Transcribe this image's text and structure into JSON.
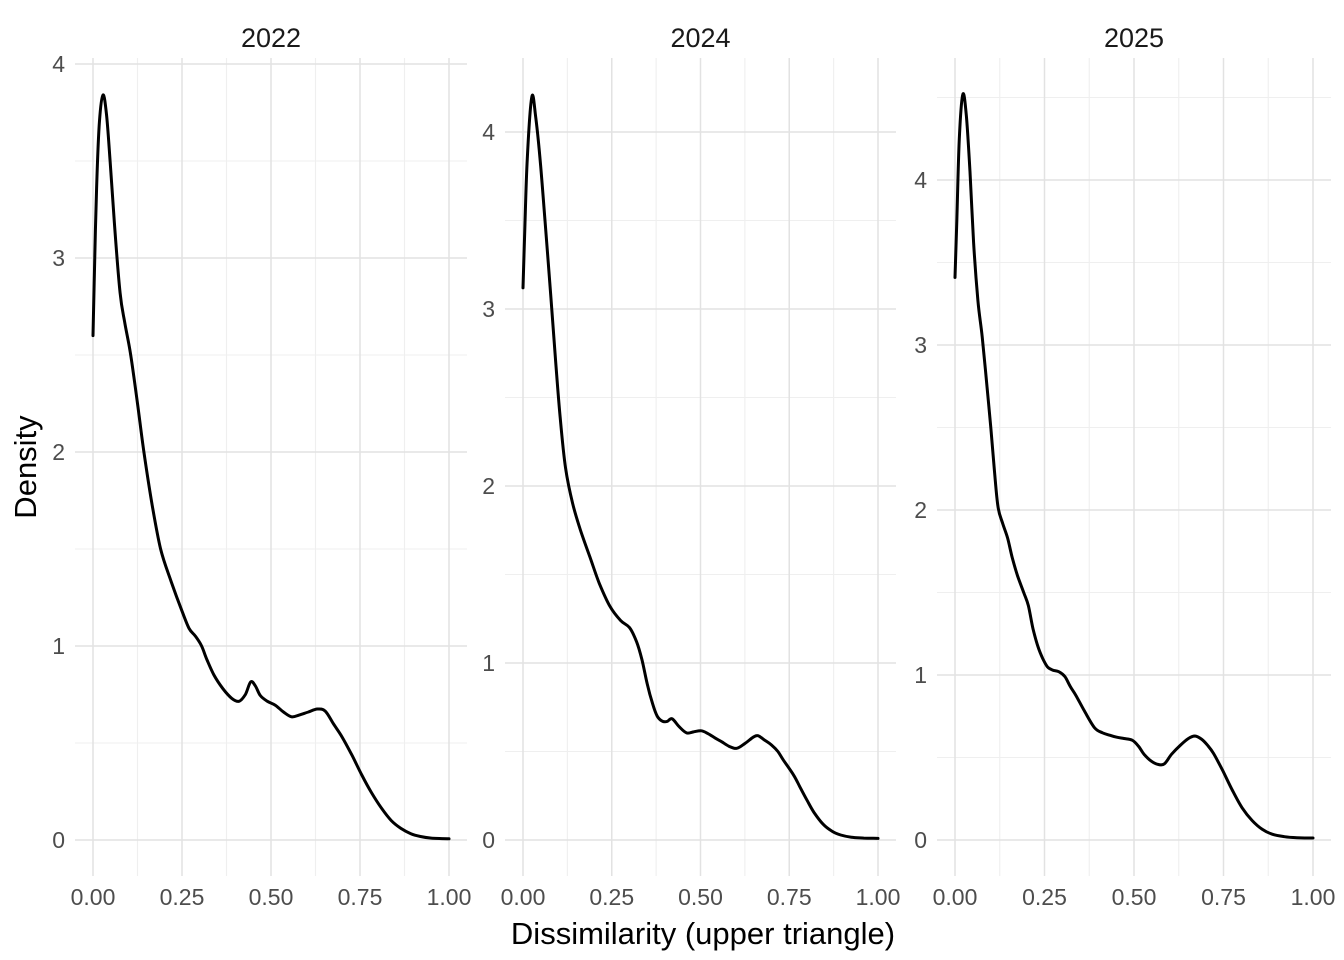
{
  "figure": {
    "title": "",
    "background_color": "#ffffff"
  },
  "chart_data": {
    "type": "line",
    "subtype": "kernel-density",
    "grid": "on",
    "legend": "none",
    "facet_layout": "3 columns, free y scales",
    "colors": {
      "line": "#000000",
      "grid_major": "#e2e2e2",
      "grid_minor": "#efefef",
      "tick_text": "#4d4d4d",
      "strip_text": "#1a1a1a",
      "axis_title_text": "#000000"
    },
    "x_axis": {
      "label": "Dissimilarity (upper triangle)",
      "ticks": [
        0,
        0.25,
        0.5,
        0.75,
        1.0
      ],
      "tick_labels": [
        "0.00",
        "0.25",
        "0.50",
        "0.75",
        "1.00"
      ],
      "minor_ticks": [
        0.125,
        0.375,
        0.625,
        0.875
      ],
      "range": [
        -0.05,
        1.05
      ]
    },
    "y_axis": {
      "label": "Density",
      "ticks": [
        0,
        1,
        2,
        3,
        4
      ],
      "tick_labels": [
        "0",
        "1",
        "2",
        "3",
        "4"
      ],
      "minor_step": 0.5
    },
    "facets": [
      {
        "title": "2022",
        "y_max": 3.84,
        "peak": {
          "x": 0.028,
          "density": 3.84
        },
        "start_density_at_0": 2.6,
        "points": [
          [
            0,
            2.6
          ],
          [
            0.004,
            2.92
          ],
          [
            0.01,
            3.36
          ],
          [
            0.018,
            3.7
          ],
          [
            0.028,
            3.84
          ],
          [
            0.038,
            3.74
          ],
          [
            0.048,
            3.5
          ],
          [
            0.06,
            3.18
          ],
          [
            0.076,
            2.82
          ],
          [
            0.09,
            2.66
          ],
          [
            0.106,
            2.5
          ],
          [
            0.125,
            2.25
          ],
          [
            0.143,
            2.0
          ],
          [
            0.165,
            1.74
          ],
          [
            0.19,
            1.5
          ],
          [
            0.22,
            1.33
          ],
          [
            0.25,
            1.18
          ],
          [
            0.27,
            1.09
          ],
          [
            0.288,
            1.05
          ],
          [
            0.305,
            1.0
          ],
          [
            0.32,
            0.93
          ],
          [
            0.34,
            0.85
          ],
          [
            0.365,
            0.78
          ],
          [
            0.39,
            0.73
          ],
          [
            0.41,
            0.715
          ],
          [
            0.428,
            0.75
          ],
          [
            0.443,
            0.815
          ],
          [
            0.456,
            0.795
          ],
          [
            0.47,
            0.745
          ],
          [
            0.49,
            0.715
          ],
          [
            0.512,
            0.695
          ],
          [
            0.535,
            0.66
          ],
          [
            0.558,
            0.635
          ],
          [
            0.58,
            0.645
          ],
          [
            0.605,
            0.66
          ],
          [
            0.63,
            0.675
          ],
          [
            0.652,
            0.665
          ],
          [
            0.675,
            0.6
          ],
          [
            0.7,
            0.53
          ],
          [
            0.728,
            0.435
          ],
          [
            0.755,
            0.335
          ],
          [
            0.782,
            0.245
          ],
          [
            0.81,
            0.165
          ],
          [
            0.838,
            0.1
          ],
          [
            0.865,
            0.06
          ],
          [
            0.892,
            0.033
          ],
          [
            0.92,
            0.018
          ],
          [
            0.95,
            0.01
          ],
          [
            1.0,
            0.006
          ]
        ]
      },
      {
        "title": "2024",
        "y_max": 4.2,
        "peak": {
          "x": 0.025,
          "density": 4.2
        },
        "start_density_at_0": 3.12,
        "points": [
          [
            0,
            3.12
          ],
          [
            0.005,
            3.45
          ],
          [
            0.012,
            3.85
          ],
          [
            0.025,
            4.2
          ],
          [
            0.036,
            4.08
          ],
          [
            0.048,
            3.85
          ],
          [
            0.062,
            3.5
          ],
          [
            0.078,
            3.08
          ],
          [
            0.092,
            2.7
          ],
          [
            0.105,
            2.38
          ],
          [
            0.12,
            2.1
          ],
          [
            0.14,
            1.9
          ],
          [
            0.162,
            1.75
          ],
          [
            0.19,
            1.59
          ],
          [
            0.215,
            1.45
          ],
          [
            0.245,
            1.32
          ],
          [
            0.275,
            1.24
          ],
          [
            0.3,
            1.2
          ],
          [
            0.32,
            1.12
          ],
          [
            0.335,
            1.02
          ],
          [
            0.35,
            0.88
          ],
          [
            0.365,
            0.77
          ],
          [
            0.378,
            0.7
          ],
          [
            0.392,
            0.672
          ],
          [
            0.406,
            0.67
          ],
          [
            0.42,
            0.685
          ],
          [
            0.44,
            0.64
          ],
          [
            0.461,
            0.605
          ],
          [
            0.482,
            0.612
          ],
          [
            0.503,
            0.617
          ],
          [
            0.522,
            0.6
          ],
          [
            0.542,
            0.575
          ],
          [
            0.56,
            0.555
          ],
          [
            0.58,
            0.53
          ],
          [
            0.602,
            0.518
          ],
          [
            0.625,
            0.545
          ],
          [
            0.648,
            0.58
          ],
          [
            0.662,
            0.589
          ],
          [
            0.68,
            0.565
          ],
          [
            0.7,
            0.537
          ],
          [
            0.718,
            0.5
          ],
          [
            0.733,
            0.453
          ],
          [
            0.762,
            0.368
          ],
          [
            0.78,
            0.3
          ],
          [
            0.8,
            0.225
          ],
          [
            0.82,
            0.155
          ],
          [
            0.845,
            0.09
          ],
          [
            0.87,
            0.05
          ],
          [
            0.895,
            0.028
          ],
          [
            0.925,
            0.016
          ],
          [
            0.96,
            0.011
          ],
          [
            1.0,
            0.009
          ]
        ]
      },
      {
        "title": "2025",
        "y_max": 4.52,
        "peak": {
          "x": 0.022,
          "density": 4.52
        },
        "start_density_at_0": 3.41,
        "points": [
          [
            0,
            3.41
          ],
          [
            0.005,
            3.75
          ],
          [
            0.012,
            4.25
          ],
          [
            0.022,
            4.52
          ],
          [
            0.032,
            4.38
          ],
          [
            0.042,
            4.05
          ],
          [
            0.052,
            3.62
          ],
          [
            0.064,
            3.27
          ],
          [
            0.076,
            3.05
          ],
          [
            0.088,
            2.78
          ],
          [
            0.1,
            2.5
          ],
          [
            0.11,
            2.24
          ],
          [
            0.12,
            2.02
          ],
          [
            0.133,
            1.92
          ],
          [
            0.147,
            1.83
          ],
          [
            0.16,
            1.71
          ],
          [
            0.175,
            1.6
          ],
          [
            0.192,
            1.5
          ],
          [
            0.205,
            1.42
          ],
          [
            0.218,
            1.28
          ],
          [
            0.232,
            1.17
          ],
          [
            0.245,
            1.1
          ],
          [
            0.258,
            1.05
          ],
          [
            0.272,
            1.03
          ],
          [
            0.29,
            1.02
          ],
          [
            0.307,
            0.99
          ],
          [
            0.322,
            0.93
          ],
          [
            0.338,
            0.875
          ],
          [
            0.362,
            0.78
          ],
          [
            0.39,
            0.68
          ],
          [
            0.412,
            0.65
          ],
          [
            0.432,
            0.635
          ],
          [
            0.452,
            0.623
          ],
          [
            0.472,
            0.615
          ],
          [
            0.495,
            0.605
          ],
          [
            0.512,
            0.57
          ],
          [
            0.528,
            0.52
          ],
          [
            0.548,
            0.478
          ],
          [
            0.567,
            0.458
          ],
          [
            0.585,
            0.462
          ],
          [
            0.605,
            0.52
          ],
          [
            0.63,
            0.575
          ],
          [
            0.652,
            0.615
          ],
          [
            0.67,
            0.63
          ],
          [
            0.688,
            0.612
          ],
          [
            0.705,
            0.575
          ],
          [
            0.722,
            0.525
          ],
          [
            0.748,
            0.42
          ],
          [
            0.775,
            0.3
          ],
          [
            0.802,
            0.195
          ],
          [
            0.83,
            0.118
          ],
          [
            0.858,
            0.065
          ],
          [
            0.886,
            0.035
          ],
          [
            0.92,
            0.02
          ],
          [
            0.955,
            0.014
          ],
          [
            1.0,
            0.012
          ]
        ]
      }
    ]
  }
}
